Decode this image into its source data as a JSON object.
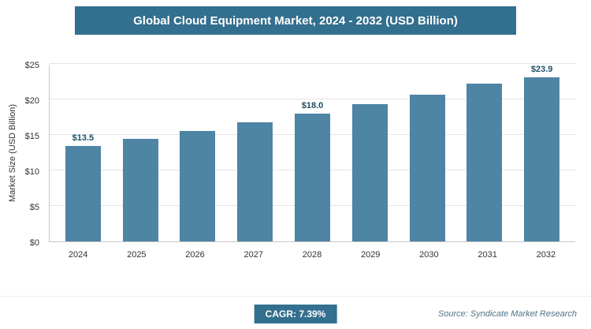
{
  "banner": {
    "title": "Global Cloud Equipment Market, 2024 - 2032 (USD Billion)"
  },
  "chart_data": {
    "type": "bar",
    "title": "Global Cloud Equipment Market, 2024 - 2032 (USD Billion)",
    "xlabel": "",
    "ylabel": "Market Size (USD Billion)",
    "categories": [
      "2024",
      "2025",
      "2026",
      "2027",
      "2028",
      "2029",
      "2030",
      "2031",
      "2032"
    ],
    "values": [
      13.5,
      14.5,
      15.6,
      16.8,
      18.0,
      19.3,
      20.7,
      22.2,
      23.9
    ],
    "bar_value_labels": [
      "$13.5",
      "",
      "",
      "",
      "$18.0",
      "",
      "",
      "",
      "$23.9"
    ],
    "ylim": [
      0,
      25
    ],
    "yticks": [
      0,
      5,
      10,
      15,
      20,
      25
    ],
    "ytick_labels": [
      "$0",
      "$5",
      "$10",
      "$15",
      "$20",
      "$25"
    ],
    "grid": true,
    "legend_position": "none",
    "bar_color": "#4e84a4"
  },
  "footer": {
    "cagr_label": "CAGR: 7.39%",
    "source": "Source: Syndicate Market Research"
  },
  "colors": {
    "banner_bg": "#336f8e",
    "bar": "#4e84a4",
    "value_label": "#1d4e66",
    "gridline": "#e5e5e5",
    "axis": "#c8c8c8",
    "badge_bg": "#336f8e"
  }
}
